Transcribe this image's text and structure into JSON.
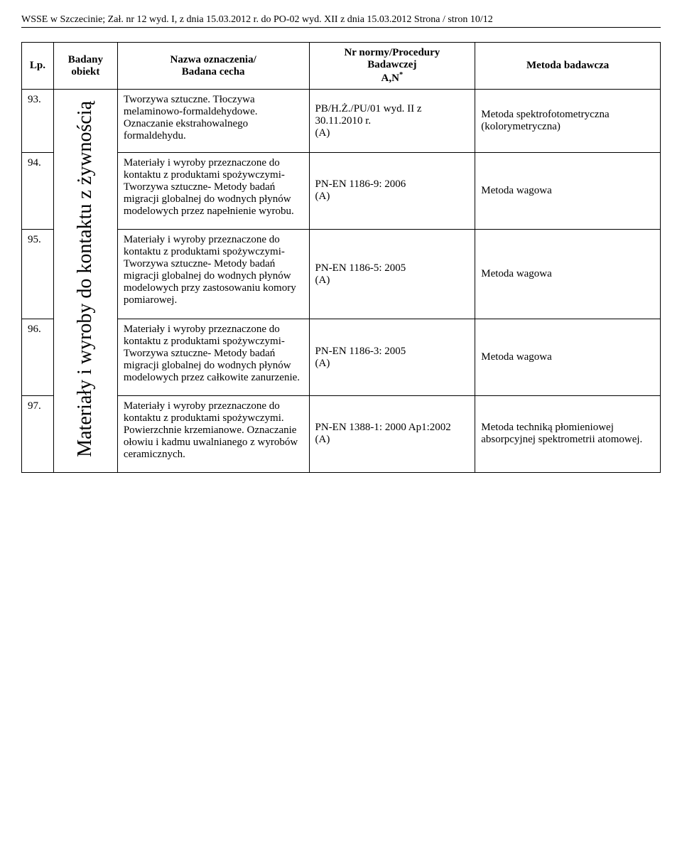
{
  "header_text": "WSSE w Szczecinie;  Zał. nr 12 wyd. I, z dnia 15.03.2012 r. do PO-02 wyd. XII z dnia 15.03.2012  Strona / stron 10/12",
  "table": {
    "columns": {
      "lp": "Lp.",
      "obiekt_line1": "Badany",
      "obiekt_line2": "obiekt",
      "nazwa_line1": "Nazwa oznaczenia/",
      "nazwa_line2": "Badana cecha",
      "norma_line1": "Nr normy/Procedury",
      "norma_line2": "Badawczej",
      "norma_line3_prefix": "A,N",
      "norma_line3_sup": "*",
      "metoda": "Metoda badawcza"
    },
    "obiekt_vertical": "Materiały i wyroby do kontaktu z żywnością",
    "rows": [
      {
        "lp": "93.",
        "nazwa": "Tworzywa sztuczne. Tłoczywa melaminowo-formaldehydowe. Oznaczanie ekstrahowalnego formaldehydu.",
        "norma": "PB/H.Ż./PU/01 wyd. II z 30.11.2010 r.\n(A)",
        "metoda": "Metoda spektrofotometryczna (kolorymetryczna)"
      },
      {
        "lp": "94.",
        "nazwa": "Materiały i wyroby przeznaczone do kontaktu z produktami spożywczymi-Tworzywa sztuczne- Metody badań migracji globalnej do wodnych płynów modelowych przez napełnienie wyrobu.",
        "norma": "PN-EN 1186-9: 2006\n (A)",
        "metoda": "Metoda wagowa"
      },
      {
        "lp": "95.",
        "nazwa": "Materiały i wyroby przeznaczone do kontaktu z produktami spożywczymi-Tworzywa sztuczne- Metody badań migracji globalnej do wodnych płynów modelowych przy zastosowaniu komory pomiarowej.",
        "norma": "PN-EN 1186-5: 2005\n (A)",
        "metoda": "Metoda wagowa"
      },
      {
        "lp": "96.",
        "nazwa": "Materiały i wyroby przeznaczone do kontaktu z produktami spożywczymi-Tworzywa sztuczne- Metody badań migracji globalnej do wodnych płynów modelowych przez całkowite zanurzenie.",
        "norma": "PN-EN 1186-3: 2005\n (A)",
        "metoda": "Metoda wagowa"
      },
      {
        "lp": "97.",
        "nazwa": "Materiały i wyroby przeznaczone do kontaktu z produktami spożywczymi. Powierzchnie krzemianowe. Oznaczanie ołowiu i kadmu uwalnianego z wyrobów ceramicznych.",
        "norma": "PN-EN 1388-1: 2000 Ap1:2002\n (A)",
        "metoda": "Metoda techniką płomieniowej absorpcyjnej spektrometrii atomowej."
      }
    ]
  }
}
